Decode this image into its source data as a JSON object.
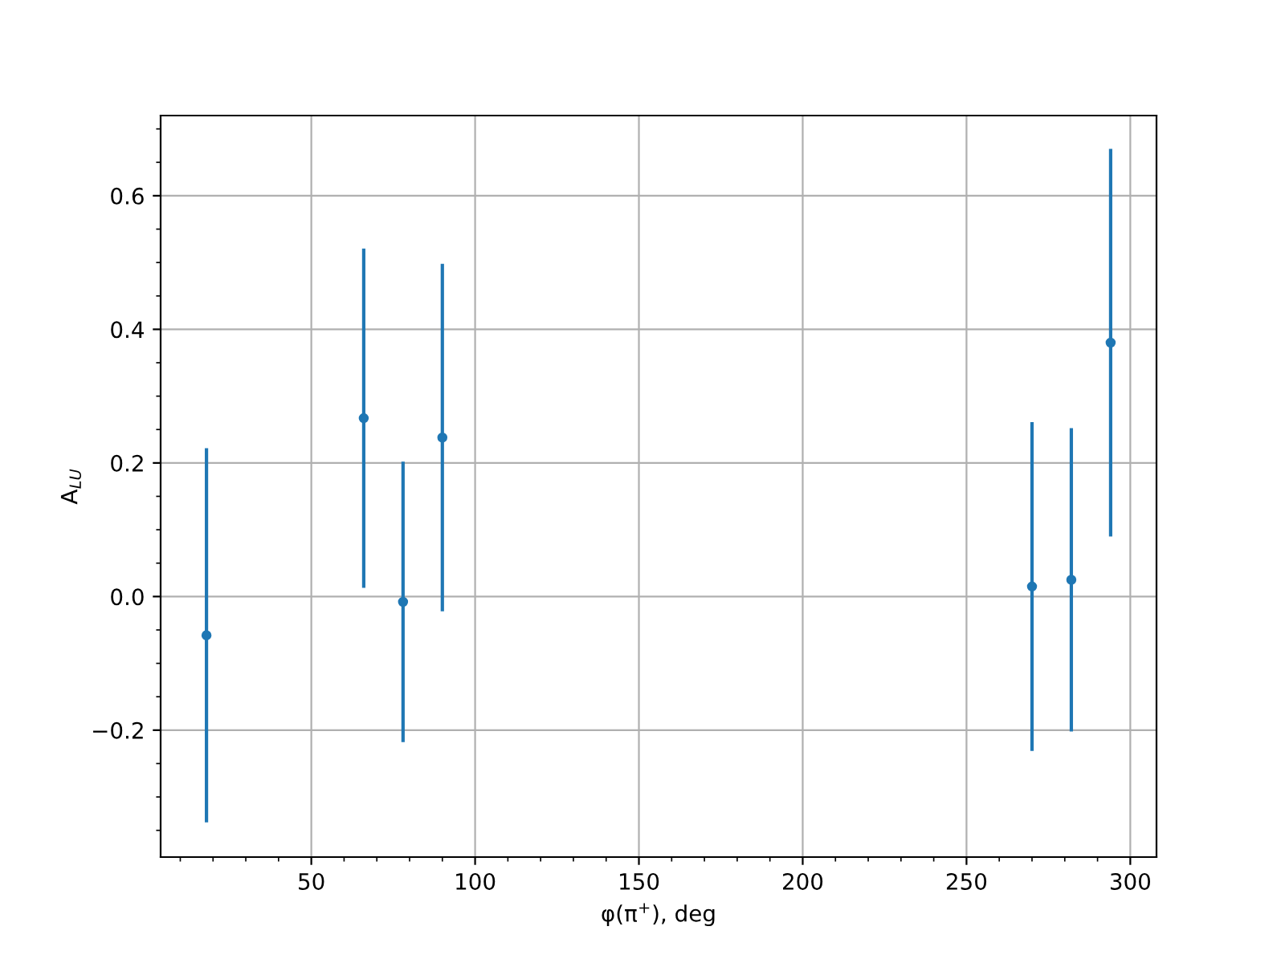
{
  "chart_data": {
    "type": "scatter",
    "xlabel": "φ(π$^{+}$), deg",
    "ylabel": "A$_{LU}$",
    "x": [
      18,
      66,
      78,
      90,
      270,
      282,
      294
    ],
    "series": [
      {
        "color": "#1f77b4",
        "values": [
          -0.058,
          0.267,
          -0.008,
          0.238,
          0.015,
          0.025,
          0.38
        ],
        "errors": [
          0.28,
          0.254,
          0.21,
          0.26,
          0.246,
          0.227,
          0.29
        ]
      }
    ],
    "marker": "circle",
    "xlim": [
      4,
      308
    ],
    "ylim": [
      -0.39,
      0.72
    ],
    "xticks": [
      50,
      100,
      150,
      200,
      250,
      300
    ],
    "yticks": [
      {
        "value": -0.2,
        "label": "−0.2"
      },
      {
        "value": 0,
        "label": "0.0"
      },
      0.2,
      0.4,
      0.6
    ],
    "grid": true
  }
}
